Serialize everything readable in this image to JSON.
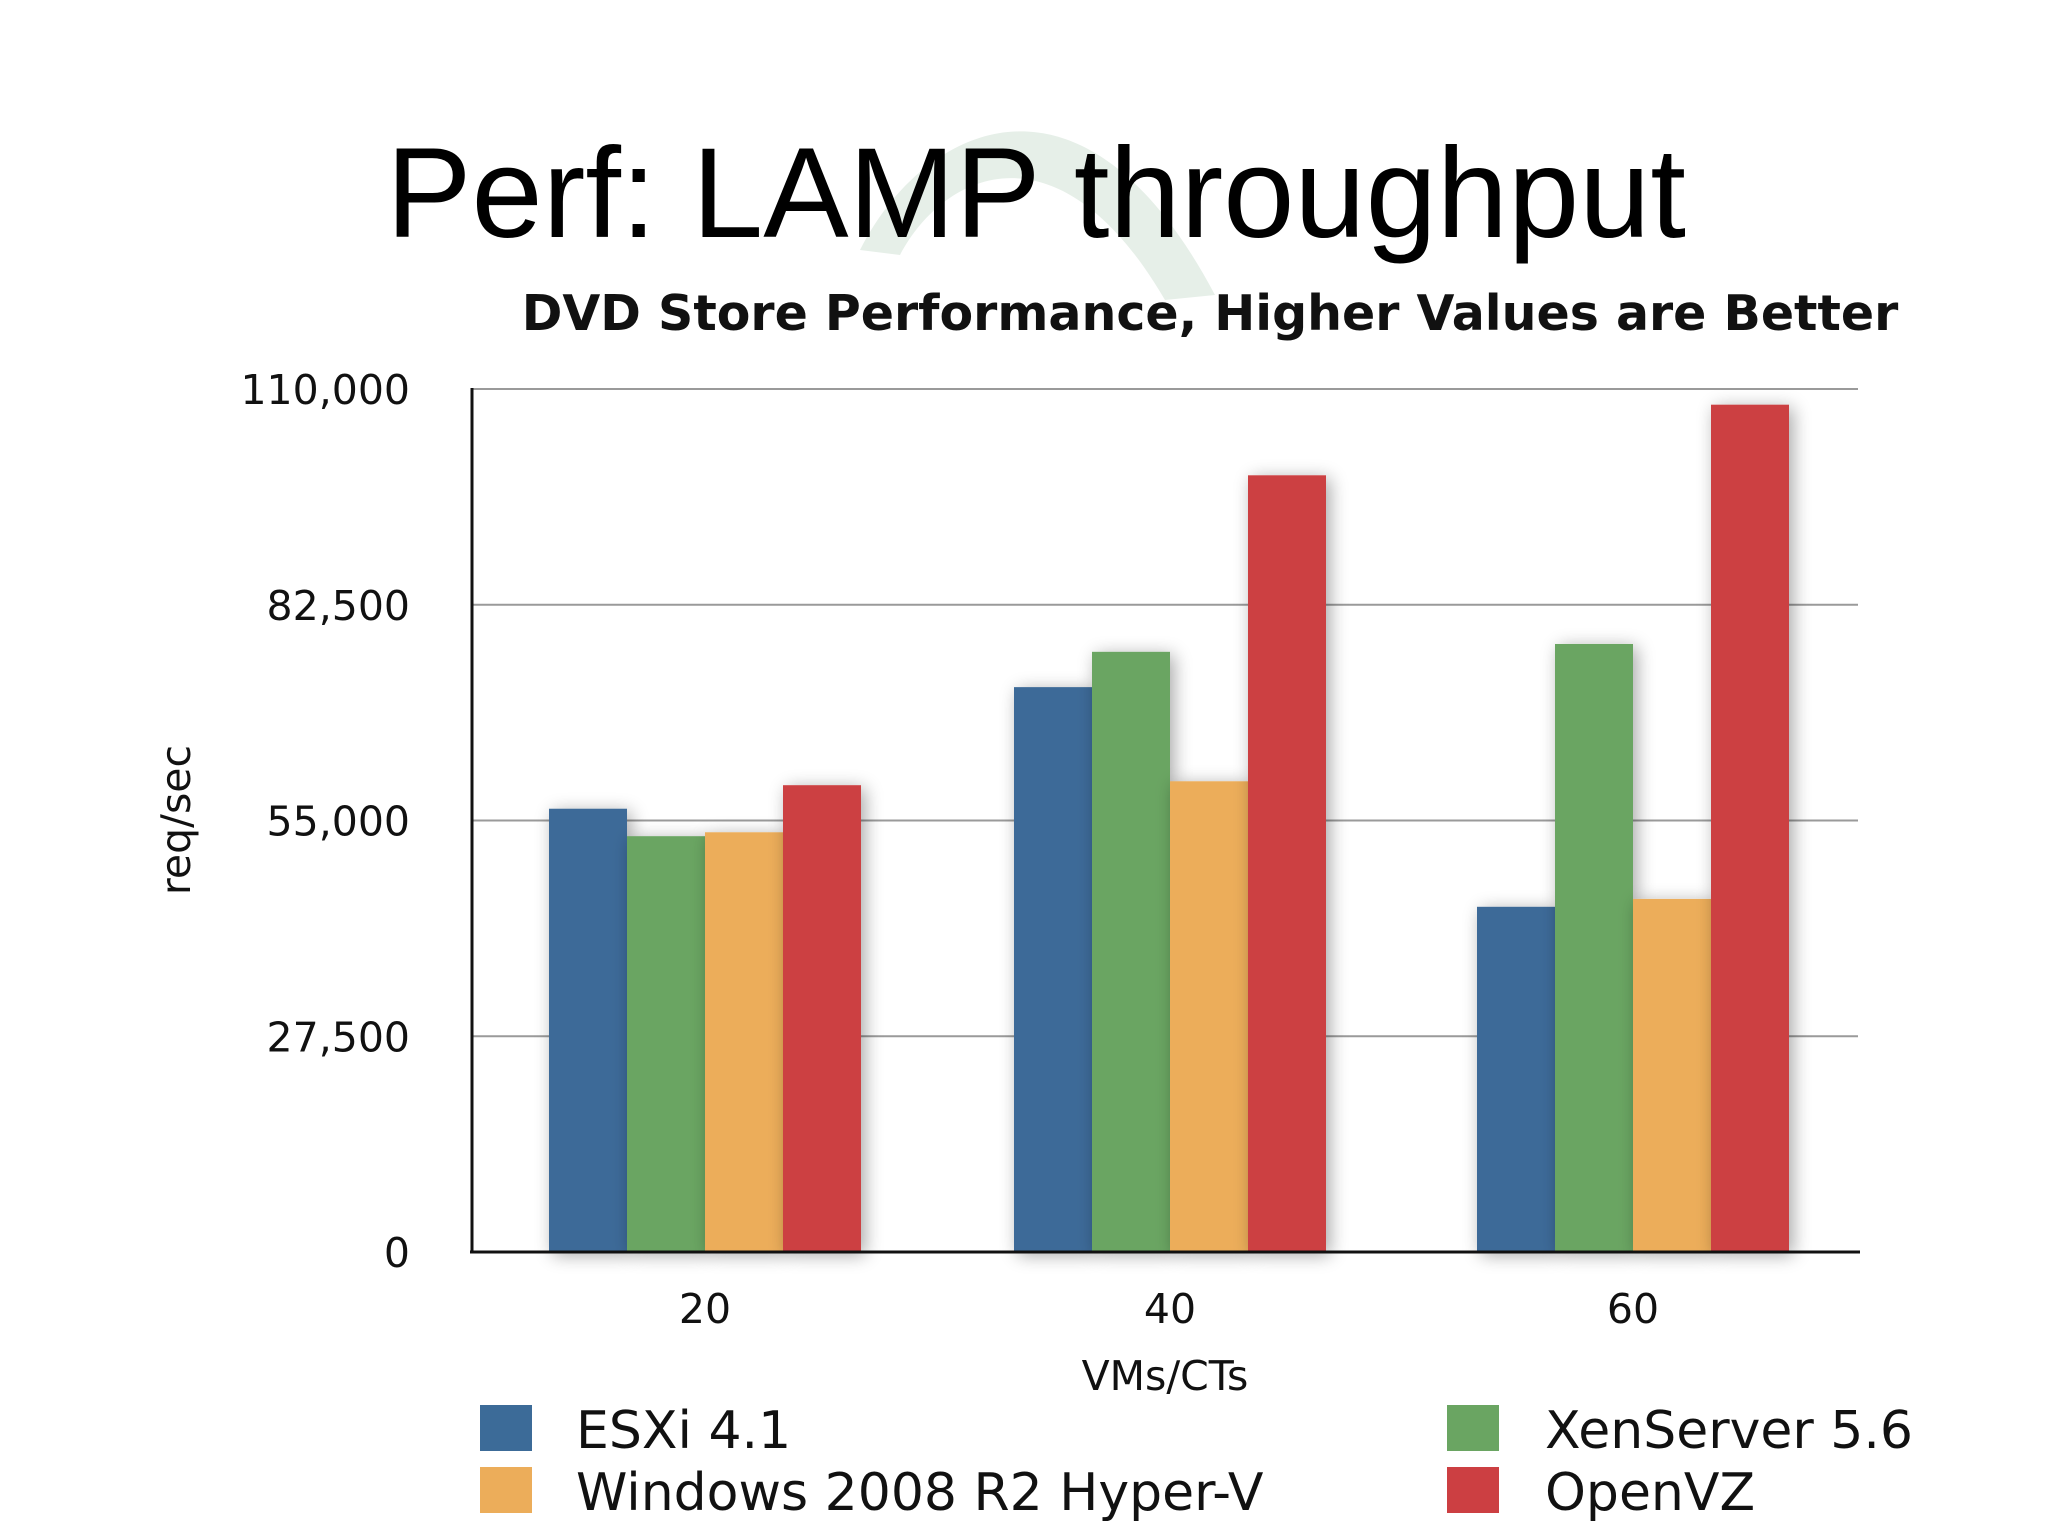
{
  "slide": {
    "title": "Perf: LAMP throughput"
  },
  "colors": {
    "esxi": "#3c6b98",
    "xen": "#6aa562",
    "hyperv": "#ecad5a",
    "openvz": "#cc3f42",
    "watermark": "#e6efe8"
  },
  "chart_data": {
    "type": "bar",
    "title": "DVD Store Performance, Higher Values are Better",
    "xlabel": "VMs/CTs",
    "ylabel": "req/sec",
    "categories": [
      "20",
      "40",
      "60"
    ],
    "ylim": [
      0,
      110000
    ],
    "yticks": [
      "0",
      "27,500",
      "55,000",
      "82,500",
      "110,000"
    ],
    "ytick_values": [
      0,
      27500,
      55000,
      82500,
      110000
    ],
    "grid": true,
    "legend_position": "bottom",
    "series": [
      {
        "name": "ESXi 4.1",
        "color": "#3c6b98",
        "values": [
          56500,
          72000,
          44000
        ]
      },
      {
        "name": "XenServer 5.6",
        "color": "#6aa562",
        "values": [
          53000,
          76500,
          77500
        ]
      },
      {
        "name": "Windows 2008 R2 Hyper-V",
        "color": "#ecad5a",
        "values": [
          53500,
          60000,
          45000
        ]
      },
      {
        "name": "OpenVZ",
        "color": "#cc3f42",
        "values": [
          59500,
          99000,
          108000
        ]
      }
    ],
    "legend_order": [
      "ESXi 4.1",
      "XenServer 5.6",
      "Windows 2008 R2 Hyper-V",
      "OpenVZ"
    ]
  }
}
